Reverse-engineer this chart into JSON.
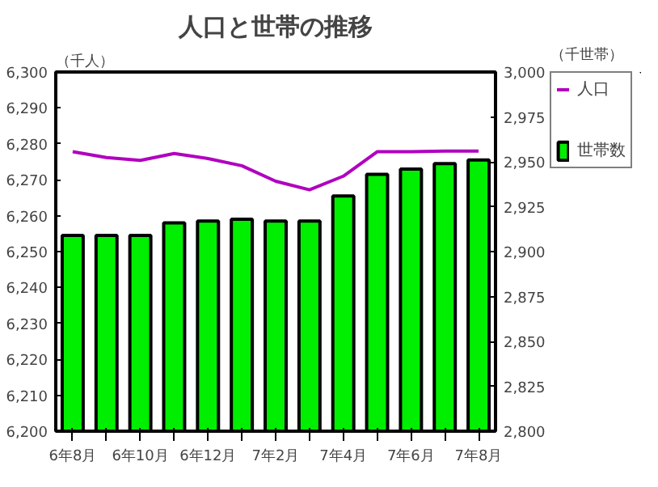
{
  "chart_data": {
    "type": "bar",
    "title": "人口と世帯の推移",
    "ylabel": "（千人）",
    "y2label": "（千世帯）",
    "categories": [
      "6年8月",
      null,
      "6年10月",
      null,
      "6年12月",
      null,
      "7年2月",
      null,
      "7年4月",
      null,
      "7年6月",
      null,
      "7年8月"
    ],
    "series": [
      {
        "name": "人口",
        "type": "line",
        "color": "#b000c0",
        "values": [
          6277.8,
          6276.2,
          6275.4,
          6277.3,
          6275.9,
          6273.9,
          6269.6,
          6267.2,
          6271,
          6277.8,
          6277.8,
          6278,
          6278
        ]
      },
      {
        "name": "世帯数",
        "axis": "y2",
        "color": "#00ee00",
        "values": [
          2909,
          2909,
          2909,
          2916,
          2917,
          2918,
          2917,
          2917,
          2931,
          2943,
          2946,
          2949,
          2951
        ]
      }
    ],
    "ylim": [
      6200,
      6300
    ],
    "yticks": [
      {
        "value": 6200,
        "label": "6,200"
      },
      {
        "value": 6210,
        "label": "6,210"
      },
      {
        "value": 6220,
        "label": "6,220"
      },
      {
        "value": 6230,
        "label": "6,230"
      },
      {
        "value": 6240,
        "label": "6,240"
      },
      {
        "value": 6250,
        "label": "6,250"
      },
      {
        "value": 6260,
        "label": "6,260"
      },
      {
        "value": 6270,
        "label": "6,270"
      },
      {
        "value": 6280,
        "label": "6,280"
      },
      {
        "value": 6290,
        "label": "6,290"
      },
      {
        "value": 6300,
        "label": "6,300"
      }
    ],
    "y2lim": [
      2800,
      3000
    ],
    "y2ticks": [
      {
        "value": 2800,
        "label": "2,800"
      },
      {
        "value": 2825,
        "label": "2,825"
      },
      {
        "value": 2850,
        "label": "2,850"
      },
      {
        "value": 2875,
        "label": "2,875"
      },
      {
        "value": 2900,
        "label": "2,900"
      },
      {
        "value": 2925,
        "label": "2,925"
      },
      {
        "value": 2950,
        "label": "2,950"
      },
      {
        "value": 2975,
        "label": "2,975"
      },
      {
        "value": 3000,
        "label": "3,000"
      }
    ],
    "grid": false,
    "legend": "right"
  }
}
